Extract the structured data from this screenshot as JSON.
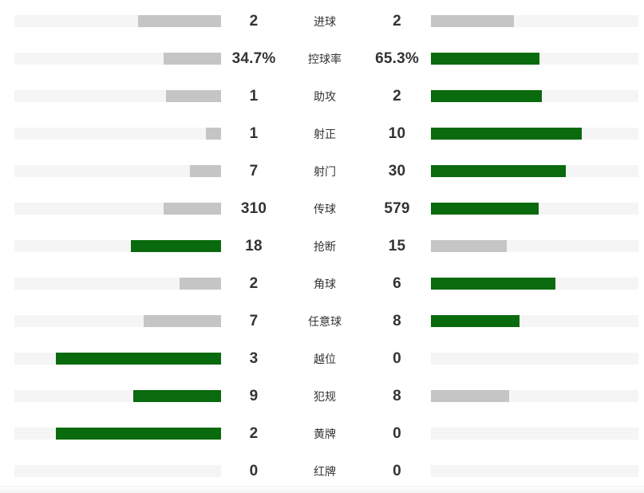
{
  "colors": {
    "green": "#0a6a0e",
    "gray": "#c5c5c5",
    "track": "#f5f5f5",
    "text": "#333333"
  },
  "chart_data": {
    "type": "bar",
    "orientation": "horizontal-paired",
    "description": "Football match statistics comparison, home (left) vs away (right); leading side bar is green, trailing side gray; bar length = value/(home+away) * 80% of track",
    "categories": [
      "进球",
      "控球率",
      "助攻",
      "射正",
      "射门",
      "传球",
      "抢断",
      "角球",
      "任意球",
      "越位",
      "犯规",
      "黄牌",
      "红牌"
    ],
    "series": [
      {
        "name": "home",
        "values": [
          2,
          34.7,
          1,
          1,
          7,
          310,
          18,
          2,
          7,
          3,
          9,
          2,
          0
        ]
      },
      {
        "name": "away",
        "values": [
          2,
          65.3,
          2,
          10,
          30,
          579,
          15,
          6,
          8,
          0,
          8,
          0,
          0
        ]
      }
    ],
    "rows": [
      {
        "label": "进球",
        "home": "2",
        "away": "2",
        "home_pct": 40,
        "away_pct": 40,
        "home_color": "gray",
        "away_color": "gray"
      },
      {
        "label": "控球率",
        "home": "34.7%",
        "away": "65.3%",
        "home_pct": 27.8,
        "away_pct": 52.2,
        "home_color": "gray",
        "away_color": "green"
      },
      {
        "label": "助攻",
        "home": "1",
        "away": "2",
        "home_pct": 26.7,
        "away_pct": 53.3,
        "home_color": "gray",
        "away_color": "green"
      },
      {
        "label": "射正",
        "home": "1",
        "away": "10",
        "home_pct": 7.3,
        "away_pct": 72.7,
        "home_color": "gray",
        "away_color": "green"
      },
      {
        "label": "射门",
        "home": "7",
        "away": "30",
        "home_pct": 15.1,
        "away_pct": 64.9,
        "home_color": "gray",
        "away_color": "green"
      },
      {
        "label": "传球",
        "home": "310",
        "away": "579",
        "home_pct": 27.9,
        "away_pct": 52.1,
        "home_color": "gray",
        "away_color": "green"
      },
      {
        "label": "抢断",
        "home": "18",
        "away": "15",
        "home_pct": 43.6,
        "away_pct": 36.4,
        "home_color": "green",
        "away_color": "gray"
      },
      {
        "label": "角球",
        "home": "2",
        "away": "6",
        "home_pct": 20,
        "away_pct": 60,
        "home_color": "gray",
        "away_color": "green"
      },
      {
        "label": "任意球",
        "home": "7",
        "away": "8",
        "home_pct": 37.3,
        "away_pct": 42.7,
        "home_color": "gray",
        "away_color": "green"
      },
      {
        "label": "越位",
        "home": "3",
        "away": "0",
        "home_pct": 80,
        "away_pct": 0,
        "home_color": "green",
        "away_color": "gray"
      },
      {
        "label": "犯规",
        "home": "9",
        "away": "8",
        "home_pct": 42.4,
        "away_pct": 37.6,
        "home_color": "green",
        "away_color": "gray"
      },
      {
        "label": "黄牌",
        "home": "2",
        "away": "0",
        "home_pct": 80,
        "away_pct": 0,
        "home_color": "green",
        "away_color": "gray"
      },
      {
        "label": "红牌",
        "home": "0",
        "away": "0",
        "home_pct": 0,
        "away_pct": 0,
        "home_color": "gray",
        "away_color": "gray"
      }
    ]
  }
}
